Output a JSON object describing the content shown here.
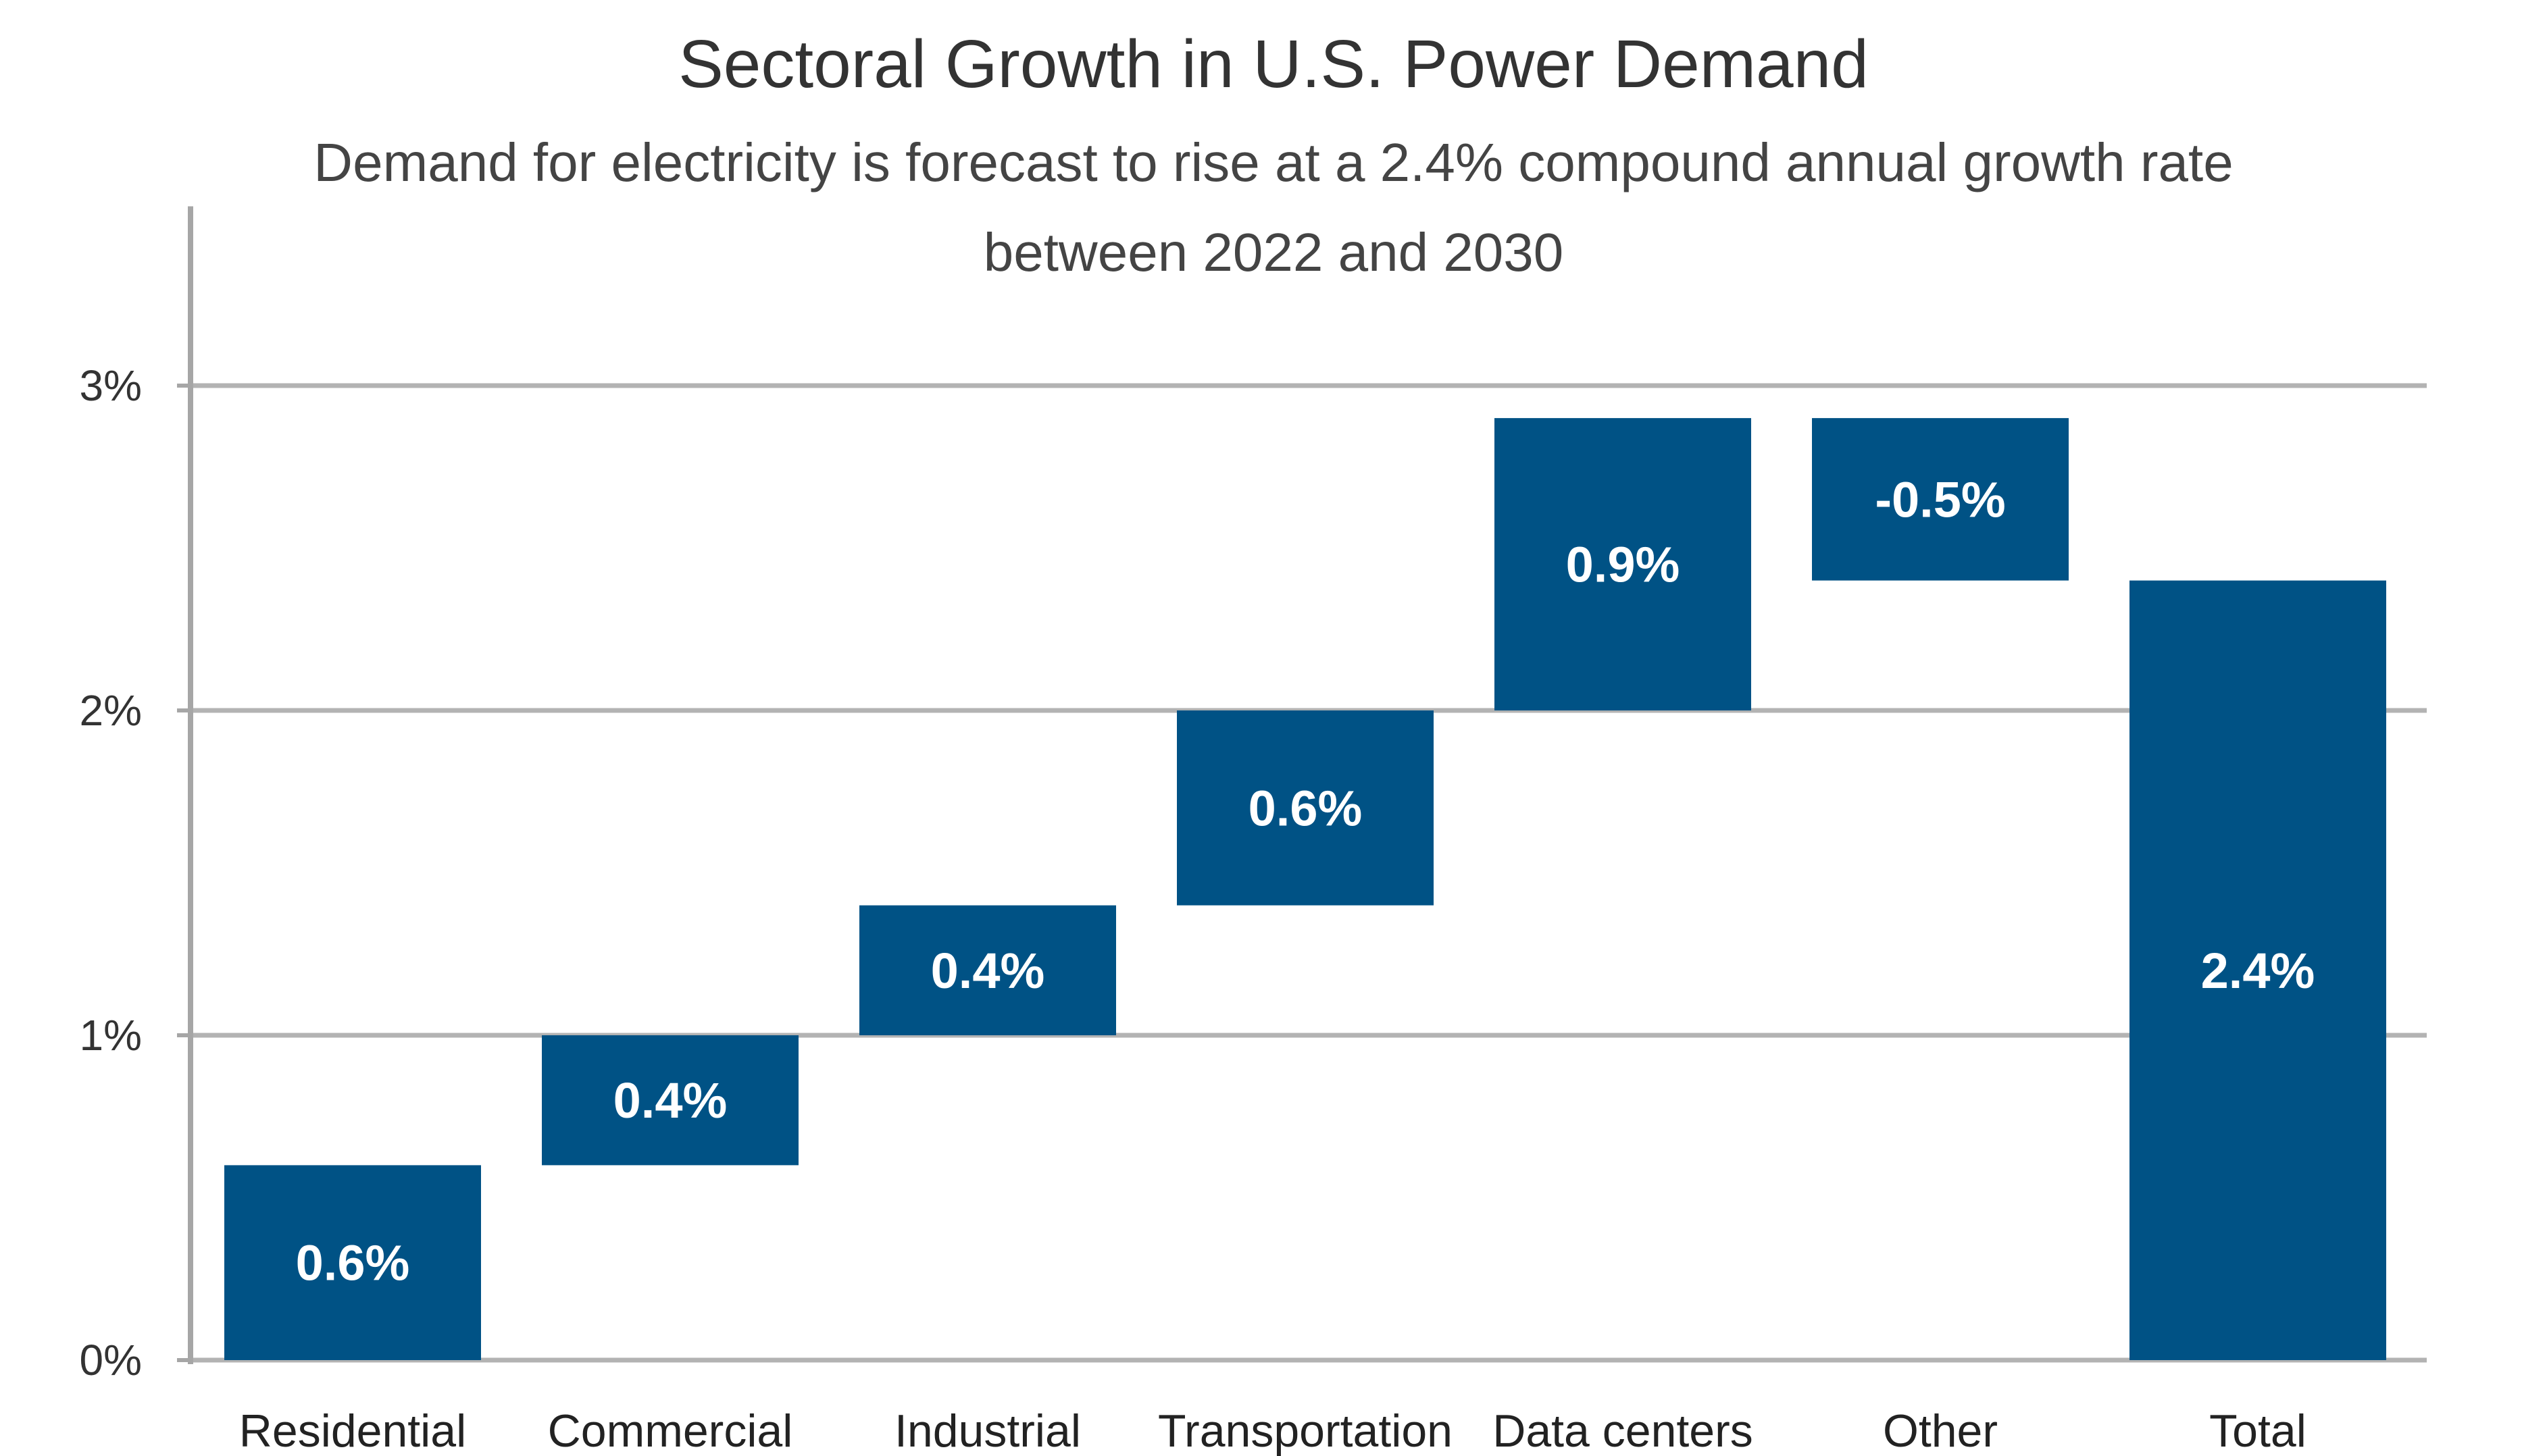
{
  "chart_data": {
    "type": "bar",
    "subtype": "waterfall",
    "title": "Sectoral Growth in U.S. Power Demand",
    "subtitle_lines": [
      "Demand for electricity is forecast to rise at a 2.4% compound annual growth rate",
      "between 2022 and 2030"
    ],
    "categories": [
      "Residential",
      "Commercial",
      "Industrial",
      "Transportation",
      "Data centers",
      "Other",
      "Total"
    ],
    "values": [
      0.6,
      0.4,
      0.4,
      0.6,
      0.9,
      -0.5,
      2.4
    ],
    "data_labels": [
      "0.6%",
      "0.4%",
      "0.4%",
      "0.6%",
      "0.9%",
      "-0.5%",
      "2.4%"
    ],
    "bar_ranges": [
      [
        0,
        0.6
      ],
      [
        0.6,
        1.0
      ],
      [
        1.0,
        1.4
      ],
      [
        1.4,
        2.0
      ],
      [
        2.0,
        2.9
      ],
      [
        2.4,
        2.9
      ],
      [
        0,
        2.4
      ]
    ],
    "ylim": [
      0,
      3.5
    ],
    "yticks": [
      0,
      1,
      2,
      3
    ],
    "ytick_labels": [
      "0%",
      "1%",
      "2%",
      "3%"
    ],
    "grid": true,
    "colors": {
      "bar": "#005285",
      "grid": "#b3b3b3",
      "axis": "#a6a6a6"
    }
  }
}
